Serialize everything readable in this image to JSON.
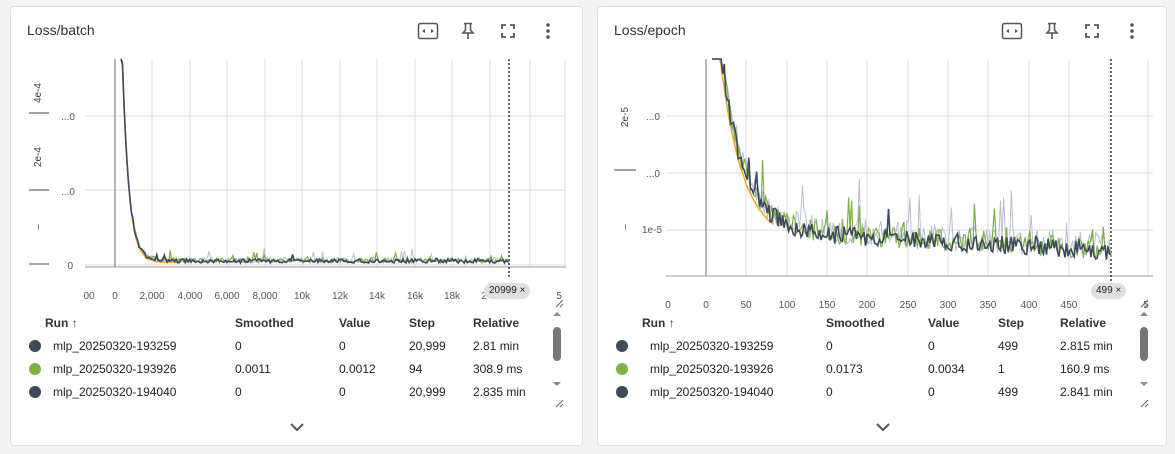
{
  "colors": {
    "run_dark": "#3d4a5c",
    "run_green": "#7cb342",
    "run_orange": "#f5a623",
    "run_light": "#b8c0cf"
  },
  "cards": [
    {
      "title": "Loss/batch",
      "actions": [
        "fit-domain-icon",
        "pin-icon",
        "fullscreen-icon",
        "more-vert-icon"
      ],
      "marker_label": "20999",
      "x_ticks": [
        "00",
        "0",
        "2,000",
        "4,000",
        "6,000",
        "8,000",
        "10k",
        "12k",
        "14k",
        "16k",
        "18k",
        "2",
        "5"
      ],
      "y_ticks": [
        "...0",
        "...0",
        "0"
      ],
      "y_side_labels": [
        "4e-4",
        "2e-4",
        "–"
      ],
      "columns": [
        "Run ↑",
        "Smoothed",
        "Value",
        "Step",
        "Relative"
      ],
      "rows": [
        {
          "run": "mlp_20250320-193259",
          "smoothed": "0",
          "value": "0",
          "step": "20,999",
          "relative": "2.81 min",
          "color": "#3d4a5c"
        },
        {
          "run": "mlp_20250320-193926",
          "smoothed": "0.0011",
          "value": "0.0012",
          "step": "94",
          "relative": "308.9 ms",
          "color": "#7cb342"
        },
        {
          "run": "mlp_20250320-194040",
          "smoothed": "0",
          "value": "0",
          "step": "20,999",
          "relative": "2.835 min",
          "color": "#3d4a5c"
        }
      ]
    },
    {
      "title": "Loss/epoch",
      "actions": [
        "fit-domain-icon",
        "pin-icon",
        "fullscreen-icon",
        "more-vert-icon"
      ],
      "marker_label": "499",
      "x_ticks": [
        "0",
        "0",
        "50",
        "100",
        "150",
        "200",
        "250",
        "300",
        "350",
        "400",
        "450",
        "5"
      ],
      "y_ticks": [
        "...0",
        "...0",
        "1e-5"
      ],
      "y_side_labels": [
        "2e-5",
        "–",
        "–"
      ],
      "columns": [
        "Run ↑",
        "Smoothed",
        "Value",
        "Step",
        "Relative"
      ],
      "rows": [
        {
          "run": "mlp_20250320-193259",
          "smoothed": "0",
          "value": "0",
          "step": "499",
          "relative": "2.815 min",
          "color": "#3d4a5c"
        },
        {
          "run": "mlp_20250320-193926",
          "smoothed": "0.0173",
          "value": "0.0034",
          "step": "1",
          "relative": "160.9 ms",
          "color": "#7cb342"
        },
        {
          "run": "mlp_20250320-194040",
          "smoothed": "0",
          "value": "0",
          "step": "499",
          "relative": "2.841 min",
          "color": "#3d4a5c"
        }
      ]
    }
  ],
  "chart_data": [
    {
      "type": "line",
      "title": "Loss/batch",
      "xlim": [
        0,
        21000
      ],
      "marker_step": 20999,
      "series": [
        {
          "name": "mlp_20250320-193259",
          "color": "#3d4a5c",
          "x": [
            0,
            200,
            500,
            1000,
            2000,
            4000,
            8000,
            12000,
            16000,
            20999
          ],
          "y": [
            0.0005,
            0.00025,
            4e-05,
            1e-05,
            6e-06,
            5e-06,
            4e-06,
            4e-06,
            3e-06,
            3e-06
          ]
        },
        {
          "name": "mlp_20250320-193926",
          "color": "#7cb342",
          "x": [
            0,
            94
          ],
          "y": [
            0.0012,
            0.0011
          ]
        }
      ]
    },
    {
      "type": "line",
      "title": "Loss/epoch",
      "xlim": [
        0,
        500
      ],
      "marker_step": 499,
      "series": [
        {
          "name": "mlp_20250320-193259",
          "color": "#3d4a5c",
          "x": [
            0,
            10,
            20,
            40,
            60,
            100,
            200,
            300,
            400,
            499
          ],
          "y": [
            3e-05,
            1.8e-05,
            1.4e-05,
            1.2e-05,
            1.1e-05,
            1.05e-05,
            1e-05,
            9.8e-06,
            9.5e-06,
            9.3e-06
          ]
        },
        {
          "name": "mlp_20250320-193926",
          "color": "#7cb342",
          "x": [
            0,
            1
          ],
          "y": [
            0.0173,
            0.0034
          ]
        }
      ]
    }
  ]
}
